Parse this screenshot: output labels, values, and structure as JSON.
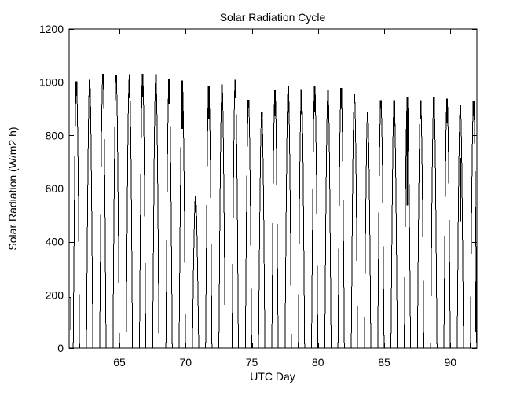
{
  "figure": {
    "background": "#ffffff",
    "foreground": "#000000"
  },
  "chart_data": {
    "type": "line",
    "title": "Solar Radiation Cycle",
    "xlabel": "UTC Day",
    "ylabel": "Solar Radiation (W/m2 h)",
    "xlim": [
      61.2,
      92
    ],
    "ylim": [
      0,
      1200
    ],
    "xticks": [
      65,
      70,
      75,
      80,
      85,
      90
    ],
    "yticks": [
      0,
      200,
      400,
      600,
      800,
      1000,
      1200
    ],
    "grid": false,
    "legend": null,
    "line_color": "#000000",
    "peak_time_frac": 0.75,
    "day_halfwidth": 0.24,
    "lead_in": [
      [
        61.2,
        190
      ],
      [
        61.32,
        190
      ],
      [
        61.34,
        0
      ]
    ],
    "days": [
      {
        "day": 61,
        "peak": 1004,
        "flicker": [
          [
            949,
            1004
          ]
        ]
      },
      {
        "day": 62,
        "peak": 1009,
        "flicker": [
          [
            946,
            1009
          ]
        ]
      },
      {
        "day": 63,
        "peak": 1032,
        "flicker": [
          [
            995,
            1032
          ]
        ]
      },
      {
        "day": 64,
        "peak": 1027,
        "flicker": [
          [
            1000,
            1027
          ]
        ]
      },
      {
        "day": 65,
        "peak": 1030,
        "flicker": [
          [
            940,
            1010
          ]
        ]
      },
      {
        "day": 66,
        "peak": 1031,
        "flicker": [
          [
            944,
            1031
          ]
        ]
      },
      {
        "day": 67,
        "peak": 1030,
        "flicker": [
          [
            945,
            1030
          ]
        ]
      },
      {
        "day": 68,
        "peak": 1014,
        "flicker": [
          [
            919,
            1014
          ]
        ]
      },
      {
        "day": 69,
        "peak": 1007,
        "flicker": [
          [
            825,
            1007
          ]
        ]
      },
      {
        "day": 70,
        "peak": 570,
        "flicker": [
          [
            510,
            570
          ]
        ]
      },
      {
        "day": 71,
        "peak": 984,
        "flicker": [
          [
            861,
            984
          ]
        ]
      },
      {
        "day": 72,
        "peak": 992,
        "flicker": [
          [
            895,
            992
          ]
        ]
      },
      {
        "day": 73,
        "peak": 1009,
        "flicker": [
          [
            940,
            1009
          ]
        ]
      },
      {
        "day": 74,
        "peak": 934,
        "flicker": [
          [
            905,
            934
          ]
        ]
      },
      {
        "day": 75,
        "peak": 888,
        "flicker": [
          [
            868,
            888
          ]
        ]
      },
      {
        "day": 76,
        "peak": 971,
        "flicker": [
          [
            875,
            971
          ]
        ]
      },
      {
        "day": 77,
        "peak": 987,
        "flicker": [
          [
            885,
            987
          ]
        ]
      },
      {
        "day": 78,
        "peak": 974,
        "flicker": [
          [
            880,
            974
          ]
        ]
      },
      {
        "day": 79,
        "peak": 985,
        "flicker": [
          [
            890,
            985
          ]
        ]
      },
      {
        "day": 80,
        "peak": 970,
        "flicker": [
          [
            905,
            970
          ]
        ]
      },
      {
        "day": 81,
        "peak": 979,
        "flicker": [
          [
            900,
            979
          ]
        ]
      },
      {
        "day": 82,
        "peak": 956,
        "flicker": [
          [
            920,
            956
          ]
        ]
      },
      {
        "day": 83,
        "peak": 886,
        "flicker": [
          [
            855,
            886
          ]
        ]
      },
      {
        "day": 84,
        "peak": 932,
        "flicker": [
          [
            900,
            932
          ]
        ]
      },
      {
        "day": 85,
        "peak": 932,
        "flicker": [
          [
            835,
            932
          ]
        ]
      },
      {
        "day": 86,
        "peak": 944,
        "flicker": [
          [
            537,
            944
          ]
        ]
      },
      {
        "day": 87,
        "peak": 933,
        "flicker": [
          [
            860,
            933
          ]
        ]
      },
      {
        "day": 88,
        "peak": 944,
        "flicker": [
          [
            895,
            944
          ]
        ]
      },
      {
        "day": 89,
        "peak": 938,
        "flicker": [
          [
            845,
            938
          ]
        ]
      },
      {
        "day": 90,
        "peak": 914,
        "flicker": [
          [
            875,
            914
          ],
          [
            477,
            716
          ]
        ]
      },
      {
        "day": 91,
        "peak": 929,
        "flicker": [
          [
            875,
            929
          ],
          [
            60,
            250,
            0.2
          ]
        ]
      }
    ]
  }
}
